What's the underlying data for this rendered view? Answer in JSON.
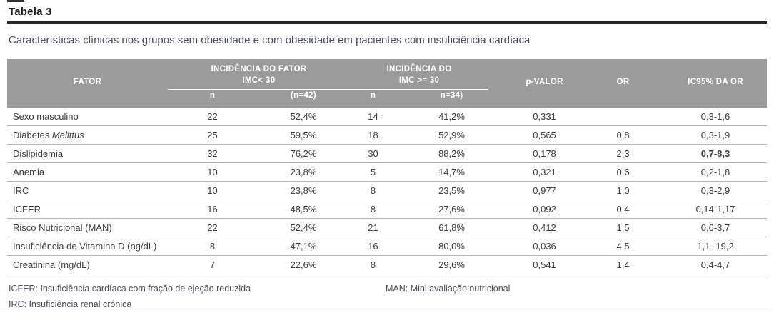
{
  "page": {
    "table_label": "Tabela 3",
    "title": "Características clínicas nos grupos sem obesidade e com obesidade em pacientes com insuficiência cardíaca"
  },
  "colors": {
    "header_background": "#9b9b9b",
    "header_text": "#ffffff",
    "body_text": "#3b3b3b",
    "rule_dark": "#26262b",
    "row_separator": "#b3b3b3"
  },
  "table": {
    "header": {
      "fator": "FATOR",
      "group1_line1": "INCIDÊNCIA DO FATOR",
      "group1_line2": "IMC< 30",
      "group2_line1": "INCIDÊNCIA DO",
      "group2_line2": "IMC >= 30",
      "sub_n1": "n",
      "sub_pct1": "(n=42)",
      "sub_n2": "n",
      "sub_pct2": "n=34)",
      "p_valor": "p-VALOR",
      "or": "OR",
      "ic95": "IC95% DA OR"
    },
    "rows": [
      {
        "fator": "Sexo masculino",
        "n1": "22",
        "pct1": "52,4%",
        "n2": "14",
        "pct2": "41,2%",
        "p": "0,331",
        "or": "",
        "ic": "0,3-1,6"
      },
      {
        "fator": "Diabetes Melittus",
        "fator_italic": "Melittus",
        "n1": "25",
        "pct1": "59,5%",
        "n2": "18",
        "pct2": "52,9%",
        "p": "0,565",
        "or": "0,8",
        "ic": "0,3-1,9"
      },
      {
        "fator": "Dislipidemia",
        "n1": "32",
        "pct1": "76,2%",
        "n2": "30",
        "pct2": "88,2%",
        "p": "0,178",
        "or": "2,3",
        "ic": "0,7-8,3",
        "ic_bold": true
      },
      {
        "fator": "Anemia",
        "n1": "10",
        "pct1": "23,8%",
        "n2": "5",
        "pct2": "14,7%",
        "p": "0,321",
        "or": "0,6",
        "ic": "0,2-1,8"
      },
      {
        "fator": "IRC",
        "n1": "10",
        "pct1": "23,8%",
        "n2": "8",
        "pct2": "23,5%",
        "p": "0,977",
        "or": "1,0",
        "ic": "0,3-2,9"
      },
      {
        "fator": "ICFER",
        "n1": "16",
        "pct1": "48,5%",
        "n2": "8",
        "pct2": "27,6%",
        "p": "0,092",
        "or": "0,4",
        "ic": "0,14-1,17"
      },
      {
        "fator": "Risco Nutricional (MAN)",
        "n1": "22",
        "pct1": "52,4%",
        "n2": "21",
        "pct2": "61,8%",
        "p": "0,412",
        "or": "1,5",
        "ic": "0,6-3,7"
      },
      {
        "fator": "Insuficiência de Vitamina D (ng/dL)",
        "n1": "8",
        "pct1": "47,1%",
        "n2": "16",
        "pct2": "80,0%",
        "p": "0,036",
        "or": "4,5",
        "ic": "1,1- 19,2"
      },
      {
        "fator": "Creatinina (mg/dL)",
        "n1": "7",
        "pct1": "22,6%",
        "n2": "8",
        "pct2": "29,6%",
        "p": "0,541",
        "or": "1,4",
        "ic": "0,4-4,7"
      }
    ]
  },
  "footnotes": {
    "icfer": "ICFER: Insuficiência cardíaca com fração de ejeção reduzida",
    "irc": "IRC: Insuficiência renal crónica",
    "man": "MAN: Mini avaliação nutricional"
  }
}
